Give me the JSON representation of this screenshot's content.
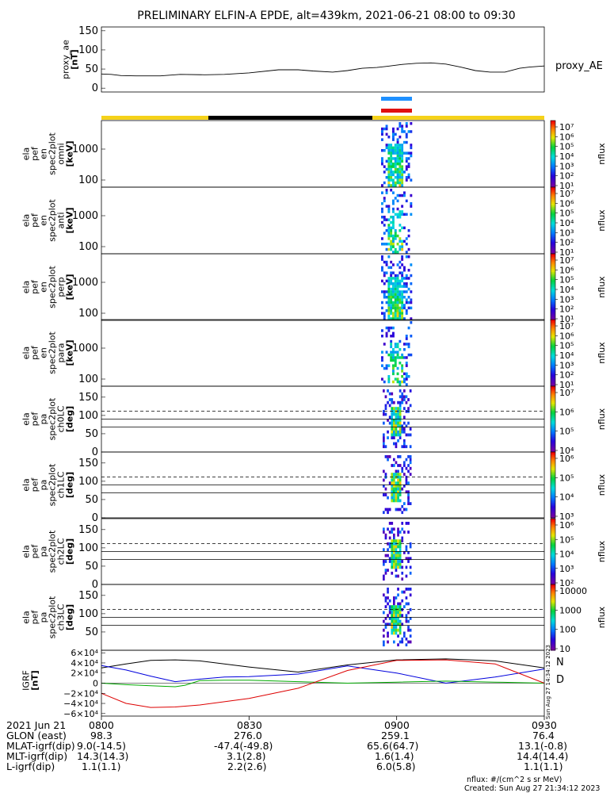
{
  "title": "PRELIMINARY ELFIN-A EPDE, alt=439km, 2021-06-21 08:00 to 09:30",
  "colors": {
    "orbit_yellow": "#f5d21a",
    "orbit_black": "#000000",
    "blue_bar": "#1e90ff",
    "red_bar": "#e01010",
    "comp_black": "#000000",
    "comp_blue": "#0000dd",
    "comp_green": "#00aa00",
    "comp_red": "#dd0000"
  },
  "chart_data": [
    {
      "type": "line",
      "id": "proxy_ae",
      "ylabel": [
        "proxy_ae",
        "[nT]"
      ],
      "legend": "proxy_AE",
      "yticks": [
        "0",
        "50",
        "100",
        "150"
      ],
      "ylim": [
        -10,
        160
      ],
      "x": [
        0,
        2,
        4,
        7,
        12,
        16,
        21,
        25,
        30,
        36,
        40,
        43,
        47,
        50,
        53,
        56,
        58,
        61,
        64,
        67,
        70,
        73,
        76,
        79,
        82,
        85,
        87,
        90
      ],
      "y": [
        37,
        36,
        33,
        32,
        32,
        36,
        35,
        36,
        40,
        48,
        48,
        45,
        42,
        46,
        52,
        54,
        57,
        62,
        65,
        66,
        63,
        55,
        46,
        42,
        42,
        52,
        55,
        58
      ]
    },
    {
      "type": "heatmap",
      "id": "en_omni",
      "ylabel": [
        "ela",
        "pef",
        "en",
        "spec2plot",
        "omni",
        "[keV]"
      ],
      "yticks": [
        "100",
        "1000"
      ]
    },
    {
      "type": "heatmap",
      "id": "en_anti",
      "ylabel": [
        "ela",
        "pef",
        "en",
        "spec2plot",
        "anti",
        "[keV]"
      ],
      "yticks": [
        "100",
        "1000"
      ]
    },
    {
      "type": "heatmap",
      "id": "en_perp",
      "ylabel": [
        "ela",
        "pef",
        "en",
        "spec2plot",
        "perp",
        "[keV]"
      ],
      "yticks": [
        "100",
        "1000"
      ]
    },
    {
      "type": "heatmap",
      "id": "en_para",
      "ylabel": [
        "ela",
        "pef",
        "en",
        "spec2plot",
        "para",
        "[keV]"
      ],
      "yticks": [
        "100",
        "1000"
      ]
    },
    {
      "type": "heatmap",
      "id": "pa_ch0",
      "ylabel": [
        "ela",
        "pef",
        "pa",
        "spec2plot",
        "ch0LC",
        "[deg]"
      ],
      "yticks": [
        "0",
        "50",
        "100",
        "150"
      ],
      "ylim": [
        0,
        180
      ]
    },
    {
      "type": "heatmap",
      "id": "pa_ch1",
      "ylabel": [
        "ela",
        "pef",
        "pa",
        "spec2plot",
        "ch1LC",
        "[deg]"
      ],
      "yticks": [
        "0",
        "50",
        "100",
        "150"
      ],
      "ylim": [
        0,
        180
      ]
    },
    {
      "type": "heatmap",
      "id": "pa_ch2",
      "ylabel": [
        "ela",
        "pef",
        "pa",
        "spec2plot",
        "ch2LC",
        "[deg]"
      ],
      "yticks": [
        "0",
        "50",
        "100",
        "150"
      ],
      "ylim": [
        0,
        180
      ]
    },
    {
      "type": "heatmap",
      "id": "pa_ch3",
      "ylabel": [
        "ela",
        "pef",
        "pa",
        "spec2plot",
        "ch3LC",
        "[deg]"
      ],
      "yticks": [
        "50",
        "100",
        "150"
      ],
      "ylim": [
        0,
        180
      ]
    },
    {
      "type": "line",
      "id": "igrf",
      "ylabel": [
        "IGRF",
        "[nT]"
      ],
      "yticks": [
        "−6×10⁴",
        "−4×10⁴",
        "−2×10⁴",
        "0",
        "2×10⁴",
        "4×10⁴",
        "6×10⁴"
      ],
      "ylim": [
        -65000,
        65000
      ],
      "legend": [
        "N",
        "D"
      ],
      "series": [
        {
          "name": "N",
          "color": "#000000",
          "x": [
            0,
            5,
            10,
            15,
            20,
            30,
            40,
            50,
            60,
            70,
            80,
            90
          ],
          "y": [
            30000,
            38000,
            45000,
            46000,
            44000,
            32000,
            22000,
            36000,
            46000,
            48000,
            44000,
            30000
          ]
        },
        {
          "name": "blue",
          "color": "#0000dd",
          "x": [
            0,
            5,
            10,
            15,
            20,
            25,
            30,
            40,
            50,
            60,
            70,
            80,
            90
          ],
          "y": [
            35000,
            26000,
            14000,
            3000,
            8000,
            12000,
            13000,
            18000,
            34000,
            20000,
            0,
            12000,
            28000
          ]
        },
        {
          "name": "green",
          "color": "#00aa00",
          "x": [
            0,
            5,
            10,
            15,
            17,
            20,
            25,
            30,
            40,
            50,
            60,
            70,
            80,
            90
          ],
          "y": [
            0,
            -3000,
            -5000,
            -7000,
            -4000,
            5000,
            6000,
            6000,
            3000,
            0,
            2000,
            4000,
            2000,
            0
          ]
        },
        {
          "name": "D",
          "color": "#dd0000",
          "x": [
            0,
            5,
            10,
            15,
            20,
            30,
            40,
            50,
            60,
            70,
            80,
            90
          ],
          "y": [
            -20000,
            -40000,
            -48000,
            -47000,
            -43000,
            -30000,
            -10000,
            25000,
            45000,
            46000,
            38000,
            0
          ]
        }
      ]
    }
  ],
  "colorbars": [
    {
      "label": "nflux",
      "ticks": [
        "10⁷",
        "10⁶",
        "10⁵",
        "10⁴",
        "10³",
        "10²",
        "10¹"
      ]
    },
    {
      "label": "nflux",
      "ticks": [
        "10⁷",
        "10⁶",
        "10⁵",
        "10⁴",
        "10³",
        "10²",
        "10¹"
      ]
    },
    {
      "label": "nflux",
      "ticks": [
        "10⁷",
        "10⁶",
        "10⁵",
        "10⁴",
        "10³",
        "10²",
        "10¹"
      ]
    },
    {
      "label": "nflux",
      "ticks": [
        "10⁷",
        "10⁶",
        "10⁵",
        "10⁴",
        "10³",
        "10²",
        "10¹"
      ]
    },
    {
      "label": "nflux",
      "ticks": [
        "10⁷",
        "10⁶",
        "10⁵",
        "10⁴"
      ]
    },
    {
      "label": "nflux",
      "ticks": [
        "10⁶",
        "10⁵",
        "10⁴",
        "10³"
      ]
    },
    {
      "label": "nflux",
      "ticks": [
        "10⁶",
        "10⁵",
        "10⁴",
        "10³",
        "10²"
      ]
    },
    {
      "label": "nflux",
      "ticks": [
        "10000",
        "1000",
        "100",
        "10"
      ]
    }
  ],
  "footer": {
    "rows": [
      {
        "label": "2021 Jun 21",
        "values": [
          "0800",
          "0830",
          "0900",
          "0930"
        ]
      },
      {
        "label": "GLON (east)",
        "values": [
          "98.3",
          "276.0",
          "259.1",
          "76.4"
        ]
      },
      {
        "label": "MLAT-igrf(dip)",
        "values": [
          "9.0(-14.5)",
          "-47.4(-49.8)",
          "65.6(64.7)",
          "13.1(-0.8)"
        ]
      },
      {
        "label": "MLT-igrf(dip)",
        "values": [
          "14.3(14.3)",
          "3.1(2.8)",
          "1.6(1.4)",
          "14.4(14.4)"
        ]
      },
      {
        "label": "L-igrf(dip)",
        "values": [
          "1.1(1.1)",
          "2.2(2.6)",
          "6.0(5.8)",
          "1.1(1.1)"
        ]
      }
    ],
    "units_note": "nflux: #/(cm^2 s sr MeV)",
    "created": "Created: Sun Aug 27 21:34:12 2023",
    "side_stamp": "Sun Aug 27 14:34:12 2023"
  }
}
